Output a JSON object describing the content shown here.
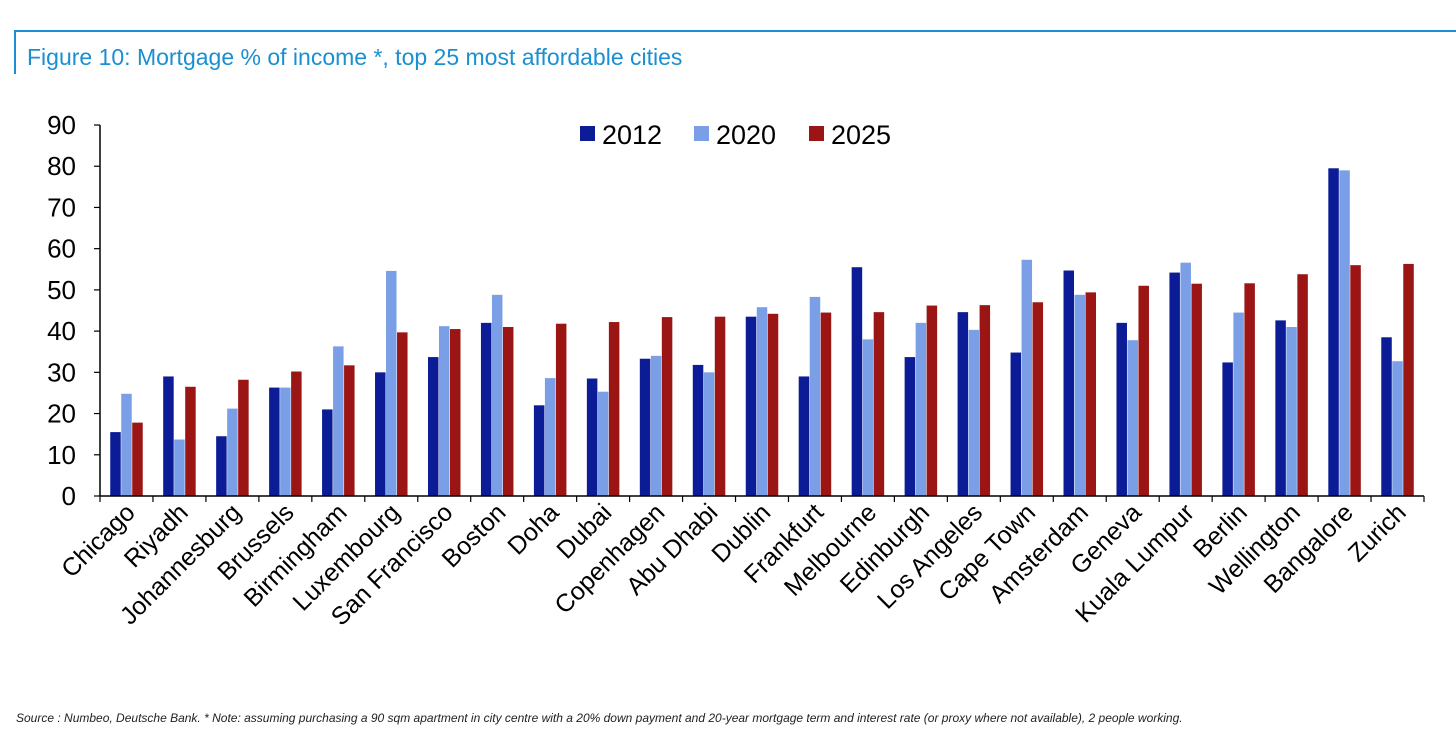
{
  "figure": {
    "title": "Figure 10: Mortgage % of income *, top 25 most affordable cities",
    "source": "Source : Numbeo, Deutsche Bank. * Note: assuming purchasing a 90 sqm apartment in city centre with a 20% down payment and 20-year mortgage term and interest rate (or proxy where not available), 2 people working."
  },
  "colors": {
    "accent": "#1a8fd1",
    "series_2012": "#0b1c96",
    "series_2020": "#7b9fe6",
    "series_2025": "#9c1515"
  },
  "chart_data": {
    "type": "bar",
    "title": "Figure 10: Mortgage % of income *, top 25 most affordable cities",
    "xlabel": "",
    "ylabel": "",
    "ylim": [
      0,
      90
    ],
    "yticks": [
      0,
      10,
      20,
      30,
      40,
      50,
      60,
      70,
      80,
      90
    ],
    "grid": false,
    "legend_position": "top-center",
    "categories": [
      "Chicago",
      "Riyadh",
      "Johannesburg",
      "Brussels",
      "Birmingham",
      "Luxembourg",
      "San Francisco",
      "Boston",
      "Doha",
      "Dubai",
      "Copenhagen",
      "Abu Dhabi",
      "Dublin",
      "Frankfurt",
      "Melbourne",
      "Edinburgh",
      "Los Angeles",
      "Cape Town",
      "Amsterdam",
      "Geneva",
      "Kuala Lumpur",
      "Berlin",
      "Wellington",
      "Bangalore",
      "Zurich"
    ],
    "series": [
      {
        "name": "2012",
        "color": "#0b1c96",
        "values": [
          15.5,
          29,
          14.5,
          26.3,
          21,
          30,
          33.7,
          42,
          22,
          28.5,
          33.3,
          31.8,
          43.5,
          29,
          55.5,
          33.7,
          44.6,
          34.8,
          54.7,
          42,
          54.2,
          32.4,
          42.6,
          79.5,
          38.5
        ]
      },
      {
        "name": "2020",
        "color": "#7b9fe6",
        "values": [
          24.8,
          13.7,
          21.2,
          26.3,
          36.3,
          54.6,
          41.2,
          48.8,
          28.6,
          25.3,
          34,
          30,
          45.8,
          48.3,
          38,
          42,
          40.3,
          57.3,
          48.8,
          37.8,
          56.6,
          44.5,
          41,
          79,
          32.7
        ]
      },
      {
        "name": "2025",
        "color": "#9c1515",
        "values": [
          17.8,
          26.5,
          28.2,
          30.2,
          31.7,
          39.7,
          40.5,
          41,
          41.8,
          42.2,
          43.4,
          43.5,
          44.2,
          44.5,
          44.6,
          46.2,
          46.3,
          47,
          49.4,
          51,
          51.5,
          51.6,
          53.8,
          56,
          56.3
        ]
      }
    ]
  }
}
